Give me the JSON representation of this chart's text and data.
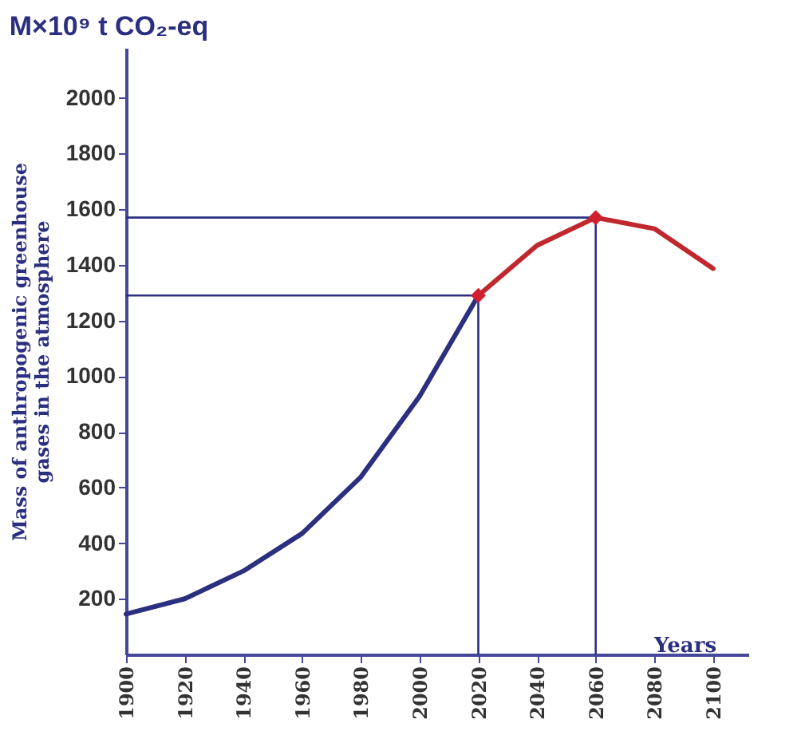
{
  "chart_data": {
    "type": "line",
    "title": "M×10⁹ t CO₂-eq",
    "ylabel": "Mass of anthropogenic greenhouse gases in the atmosphere",
    "xlabel": "Years",
    "series": [
      {
        "color": "#2b2f7f",
        "x": [
          1900,
          1920,
          1940,
          1960,
          1980,
          2000,
          2020
        ],
        "values": [
          145,
          200,
          300,
          435,
          638,
          928,
          1290
        ],
        "marker": "none"
      },
      {
        "color": "#c0282d",
        "x": [
          2020,
          2040,
          2060,
          2080,
          2100
        ],
        "values": [
          1290,
          1470,
          1570,
          1530,
          1387
        ],
        "marker": "none"
      },
      {
        "type": "scatter",
        "color": "#d02030",
        "x": [
          2020,
          2060
        ],
        "values": [
          1290,
          1570
        ],
        "marker": "diamond"
      }
    ],
    "xlim": [
      1900,
      2112
    ],
    "ylim": [
      0,
      2180
    ],
    "xticks": [
      1900,
      1920,
      1940,
      1960,
      1980,
      2000,
      2020,
      2040,
      2060,
      2080,
      2100
    ],
    "yticks": [
      200,
      400,
      600,
      800,
      1000,
      1200,
      1400,
      1600,
      1800,
      2000
    ],
    "ref_lines": [
      {
        "axis": "y",
        "value": 1290,
        "color": "#2b2f7f"
      },
      {
        "axis": "y",
        "value": 1570,
        "color": "#2b2f7f"
      },
      {
        "axis": "x",
        "value": 2020,
        "color": "#2b2f7f"
      },
      {
        "axis": "x",
        "value": 2060,
        "color": "#2b2f7f"
      }
    ],
    "line_style": "solid"
  }
}
